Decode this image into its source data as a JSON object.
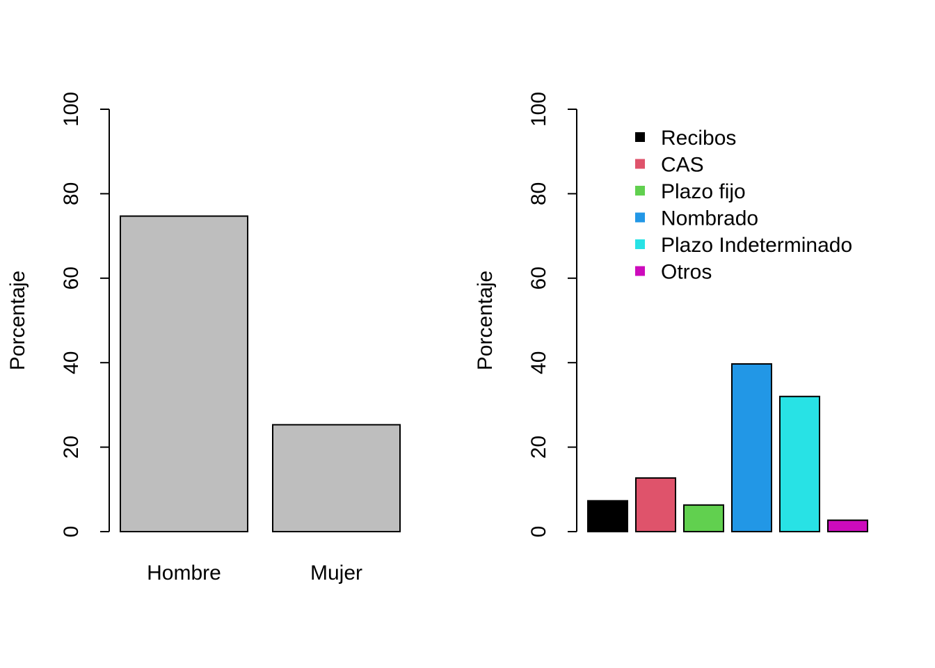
{
  "chart_data": [
    {
      "type": "bar",
      "categories": [
        "Hombre",
        "Mujer"
      ],
      "values": [
        74.7,
        25.3
      ],
      "colors": [
        "#BEBEBE",
        "#BEBEBE"
      ],
      "ylabel": "Porcentaje",
      "ylim": [
        0,
        100
      ],
      "yticks": [
        "0",
        "20",
        "40",
        "60",
        "80",
        "100"
      ],
      "show_category_labels": true
    },
    {
      "type": "bar",
      "categories": [
        "Recibos",
        "CAS",
        "Plazo fijo",
        "Nombrado",
        "Plazo Indeterminado",
        "Otros"
      ],
      "values": [
        7.3,
        12.7,
        6.3,
        39.7,
        32.0,
        2.7
      ],
      "colors": [
        "#000000",
        "#DF536B",
        "#61D04F",
        "#2297E6",
        "#28E2E5",
        "#CD0BBC"
      ],
      "ylabel": "Porcentaje",
      "ylim": [
        0,
        100
      ],
      "yticks": [
        "0",
        "20",
        "40",
        "60",
        "80",
        "100"
      ],
      "show_category_labels": false,
      "legend": {
        "position": "top-right",
        "entries": [
          "Recibos",
          "CAS",
          "Plazo fijo",
          "Nombrado",
          "Plazo Indeterminado",
          "Otros"
        ]
      }
    }
  ]
}
